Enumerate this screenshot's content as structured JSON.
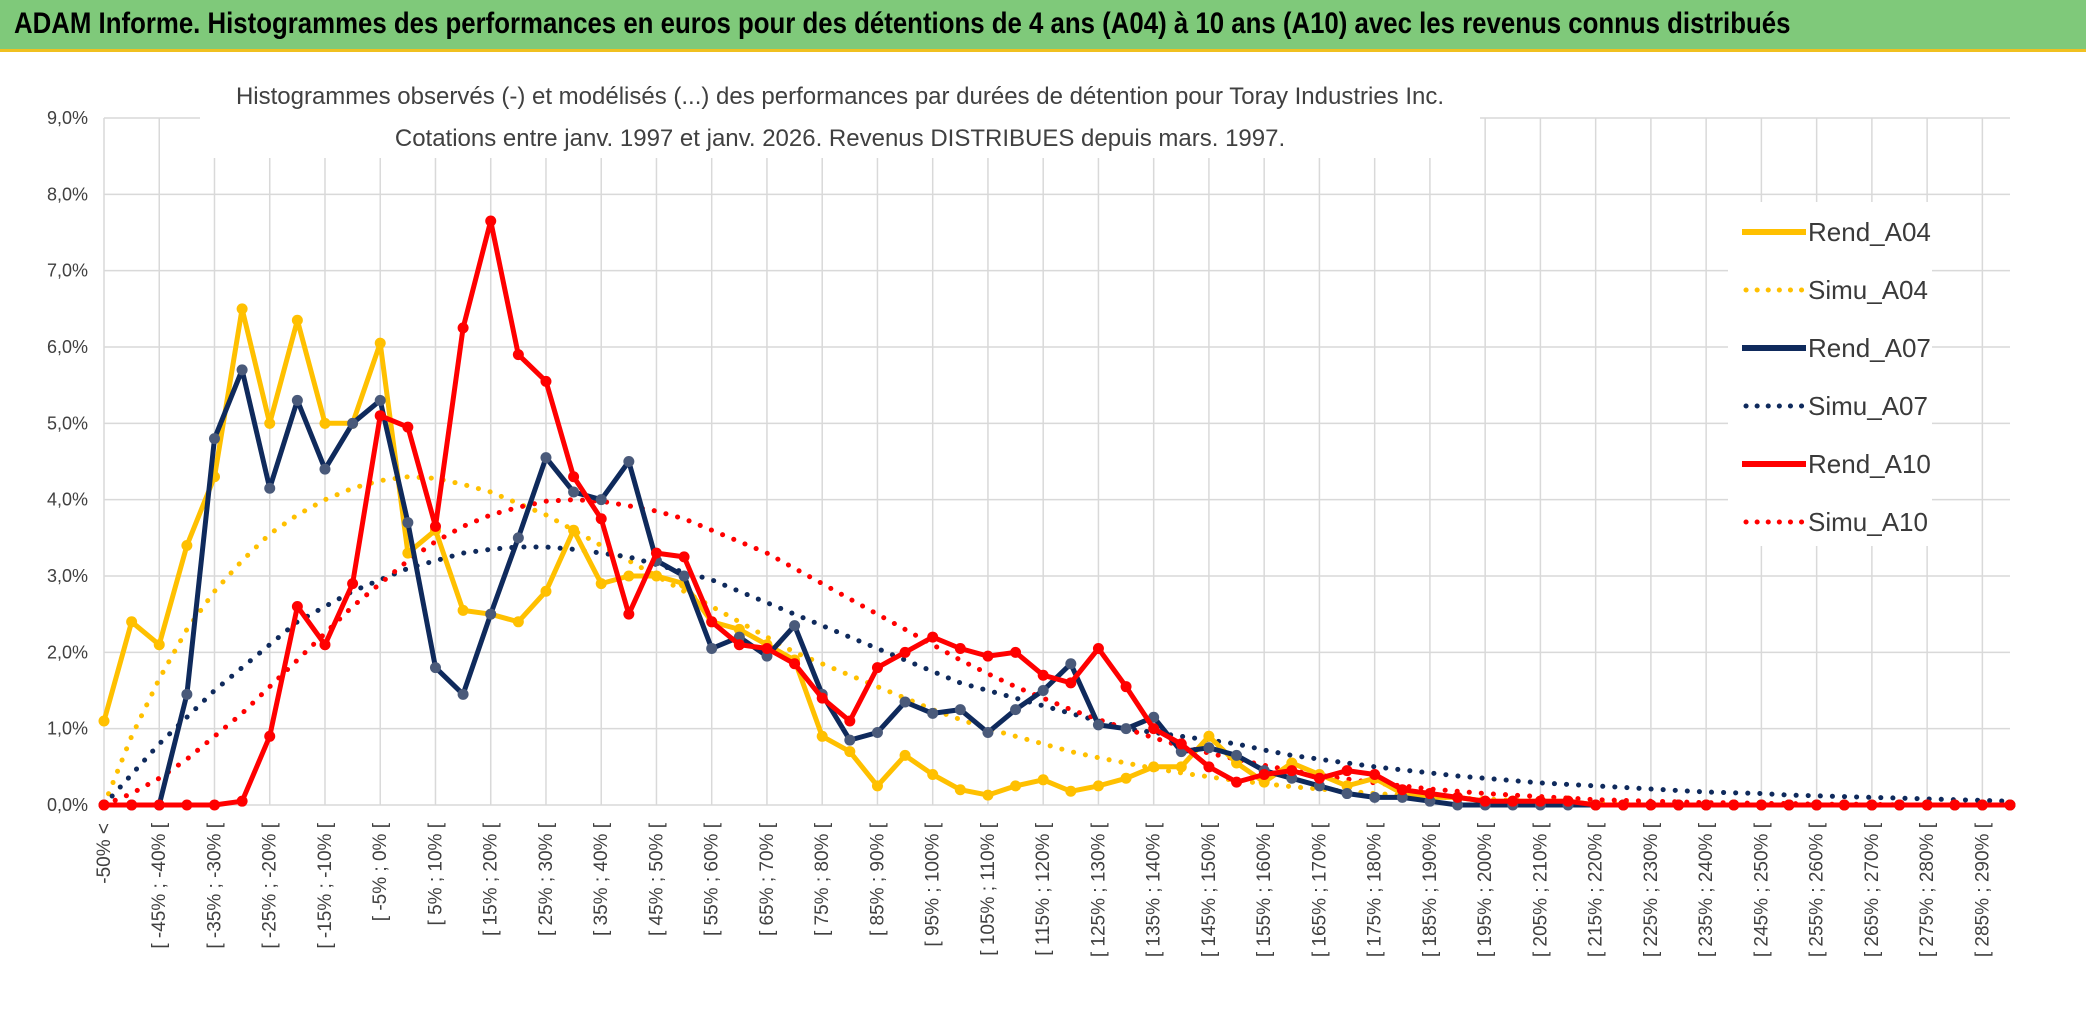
{
  "banner": {
    "title": "ADAM Informe. Histogrammes des performances en euros pour des détentions de 4 ans (A04) à 10 ans (A10) avec les revenus connus distribués"
  },
  "chart_data": {
    "type": "line",
    "title_line1": "Histogrammes observés (-) et modélisés (...) des performances par durées de détention pour Toray Industries Inc.",
    "title_line2": "Cotations entre janv. 1997 et janv. 2026. Revenus DISTRIBUES depuis mars. 1997.",
    "ylim": [
      0,
      9
    ],
    "y_ticks": [
      "0,0%",
      "1,0%",
      "2,0%",
      "3,0%",
      "4,0%",
      "5,0%",
      "6,0%",
      "7,0%",
      "8,0%",
      "9,0%"
    ],
    "x_tick_labels": [
      "-50% <",
      "[ -45% ; -40% [",
      "[ -35% ; -30% [",
      "[ -25% ; -20% [",
      "[ -15% ; -10% [",
      "[ -5% ; 0% [",
      "[ 5% ; 10% [",
      "[ 15% ; 20% [",
      "[ 25% ; 30% [",
      "[ 35% ; 40% [",
      "[ 45% ; 50% [",
      "[ 55% ; 60% [",
      "[ 65% ; 70% [",
      "[ 75% ; 80% [",
      "[ 85% ; 90% [",
      "[ 95% ; 100% [",
      "[ 105% ; 110% [",
      "[ 115% ; 120% [",
      "[ 125% ; 130% [",
      "[ 135% ; 140% [",
      "[ 145% ; 150% [",
      "[ 155% ; 160% [",
      "[ 165% ; 170% [",
      "[ 175% ; 180% [",
      "[ 185% ; 190% [",
      "[ 195% ; 200% [",
      "[ 205% ; 210% [",
      "[ 215% ; 220% [",
      "[ 225% ; 230% [",
      "[ 235% ; 240% [",
      "[ 245% ; 250% [",
      "[ 255% ; 260% [",
      "[ 265% ; 270% [",
      "[ 275% ; 280% [",
      "[ 285% ; 290% ["
    ],
    "grid": true,
    "legend_position": "right",
    "series": [
      {
        "name": "Rend_A04",
        "style": "solid",
        "color": "#ffc000",
        "values": [
          1.1,
          2.4,
          2.1,
          3.4,
          4.3,
          6.5,
          5.0,
          6.35,
          5.0,
          5.0,
          6.05,
          3.3,
          3.6,
          2.55,
          2.5,
          2.4,
          2.8,
          3.6,
          2.9,
          3.0,
          3.0,
          2.9,
          2.4,
          2.3,
          2.1,
          1.9,
          0.9,
          0.7,
          0.25,
          0.65,
          0.4,
          0.2,
          0.13,
          0.25,
          0.33,
          0.18,
          0.25,
          0.35,
          0.5,
          0.5,
          0.9,
          0.55,
          0.3,
          0.55,
          0.4,
          0.25,
          0.35,
          0.15,
          0.1,
          0.1,
          0.05,
          0.05,
          0.05,
          0.05,
          0.0,
          0.0,
          0.0,
          0.0,
          0.0,
          0.0,
          0.0,
          0.0,
          0.0,
          0.0,
          0.0,
          0.0,
          0.0,
          0.0,
          0.0,
          0.0
        ]
      },
      {
        "name": "Simu_A04",
        "style": "dotted",
        "color": "#ffc000",
        "values": [
          0.0,
          0.9,
          1.65,
          2.3,
          2.8,
          3.2,
          3.55,
          3.8,
          4.0,
          4.15,
          4.25,
          4.3,
          4.28,
          4.2,
          4.1,
          3.95,
          3.8,
          3.6,
          3.4,
          3.2,
          3.0,
          2.8,
          2.6,
          2.4,
          2.2,
          2.0,
          1.85,
          1.7,
          1.55,
          1.4,
          1.25,
          1.12,
          1.0,
          0.9,
          0.8,
          0.7,
          0.62,
          0.55,
          0.48,
          0.42,
          0.37,
          0.32,
          0.28,
          0.24,
          0.21,
          0.18,
          0.15,
          0.13,
          0.11,
          0.09,
          0.08,
          0.06,
          0.05,
          0.04,
          0.03,
          0.03,
          0.02,
          0.02,
          0.01,
          0.01,
          0.01,
          0.0,
          0.0,
          0.0,
          0.0,
          0.0,
          0.0,
          0.0,
          0.0,
          0.0
        ]
      },
      {
        "name": "Rend_A07",
        "style": "solid",
        "color": "#0f2a5c",
        "values": [
          0.0,
          0.0,
          0.0,
          1.45,
          4.8,
          5.7,
          4.15,
          5.3,
          4.4,
          5.0,
          5.3,
          3.7,
          1.8,
          1.45,
          2.5,
          3.5,
          4.55,
          4.1,
          4.0,
          4.5,
          3.2,
          3.0,
          2.05,
          2.2,
          1.95,
          2.35,
          1.45,
          0.85,
          0.95,
          1.35,
          1.2,
          1.25,
          0.95,
          1.25,
          1.5,
          1.85,
          1.05,
          1.0,
          1.15,
          0.7,
          0.75,
          0.65,
          0.45,
          0.35,
          0.25,
          0.15,
          0.1,
          0.1,
          0.05,
          0.0,
          0.0,
          0.0,
          0.0,
          0.0,
          0.0,
          0.0,
          0.0,
          0.0,
          0.0,
          0.0,
          0.0,
          0.0,
          0.0,
          0.0,
          0.0,
          0.0,
          0.0,
          0.0,
          0.0,
          0.0
        ]
      },
      {
        "name": "Simu_A07",
        "style": "dotted",
        "color": "#0f2a5c",
        "values": [
          0.0,
          0.4,
          0.8,
          1.15,
          1.5,
          1.8,
          2.1,
          2.4,
          2.6,
          2.8,
          2.95,
          3.1,
          3.2,
          3.3,
          3.35,
          3.38,
          3.38,
          3.35,
          3.3,
          3.25,
          3.15,
          3.05,
          2.95,
          2.8,
          2.65,
          2.5,
          2.35,
          2.2,
          2.05,
          1.9,
          1.75,
          1.6,
          1.5,
          1.4,
          1.3,
          1.2,
          1.1,
          1.0,
          0.95,
          0.9,
          0.85,
          0.8,
          0.72,
          0.65,
          0.6,
          0.55,
          0.5,
          0.46,
          0.42,
          0.38,
          0.35,
          0.32,
          0.29,
          0.27,
          0.25,
          0.23,
          0.21,
          0.19,
          0.17,
          0.16,
          0.15,
          0.13,
          0.12,
          0.11,
          0.1,
          0.09,
          0.08,
          0.07,
          0.06,
          0.05
        ]
      },
      {
        "name": "Rend_A10",
        "style": "solid",
        "color": "#ff0000",
        "values": [
          0.0,
          0.0,
          0.0,
          0.0,
          0.0,
          0.05,
          0.9,
          2.6,
          2.1,
          2.9,
          5.1,
          4.95,
          3.65,
          6.25,
          7.65,
          5.9,
          5.55,
          4.3,
          3.75,
          2.5,
          3.3,
          3.25,
          2.4,
          2.1,
          2.05,
          1.85,
          1.4,
          1.1,
          1.8,
          2.0,
          2.2,
          2.05,
          1.95,
          2.0,
          1.7,
          1.6,
          2.05,
          1.55,
          1.0,
          0.8,
          0.5,
          0.3,
          0.4,
          0.45,
          0.35,
          0.45,
          0.4,
          0.2,
          0.15,
          0.1,
          0.05,
          0.05,
          0.05,
          0.05,
          0.0,
          0.0,
          0.0,
          0.0,
          0.0,
          0.0,
          0.0,
          0.0,
          0.0,
          0.0,
          0.0,
          0.0,
          0.0,
          0.0,
          0.0,
          0.0
        ]
      },
      {
        "name": "Simu_A10",
        "style": "dotted",
        "color": "#ff0000",
        "values": [
          0.0,
          0.15,
          0.35,
          0.6,
          0.9,
          1.2,
          1.55,
          1.9,
          2.25,
          2.6,
          2.9,
          3.2,
          3.45,
          3.65,
          3.8,
          3.9,
          3.98,
          4.0,
          3.98,
          3.92,
          3.85,
          3.75,
          3.6,
          3.45,
          3.3,
          3.1,
          2.9,
          2.7,
          2.5,
          2.3,
          2.1,
          1.9,
          1.72,
          1.55,
          1.4,
          1.25,
          1.12,
          1.0,
          0.88,
          0.77,
          0.68,
          0.6,
          0.52,
          0.45,
          0.39,
          0.34,
          0.29,
          0.25,
          0.21,
          0.18,
          0.15,
          0.13,
          0.11,
          0.09,
          0.07,
          0.06,
          0.05,
          0.04,
          0.03,
          0.03,
          0.02,
          0.02,
          0.01,
          0.01,
          0.01,
          0.0,
          0.0,
          0.0,
          0.0,
          0.0
        ]
      }
    ]
  }
}
